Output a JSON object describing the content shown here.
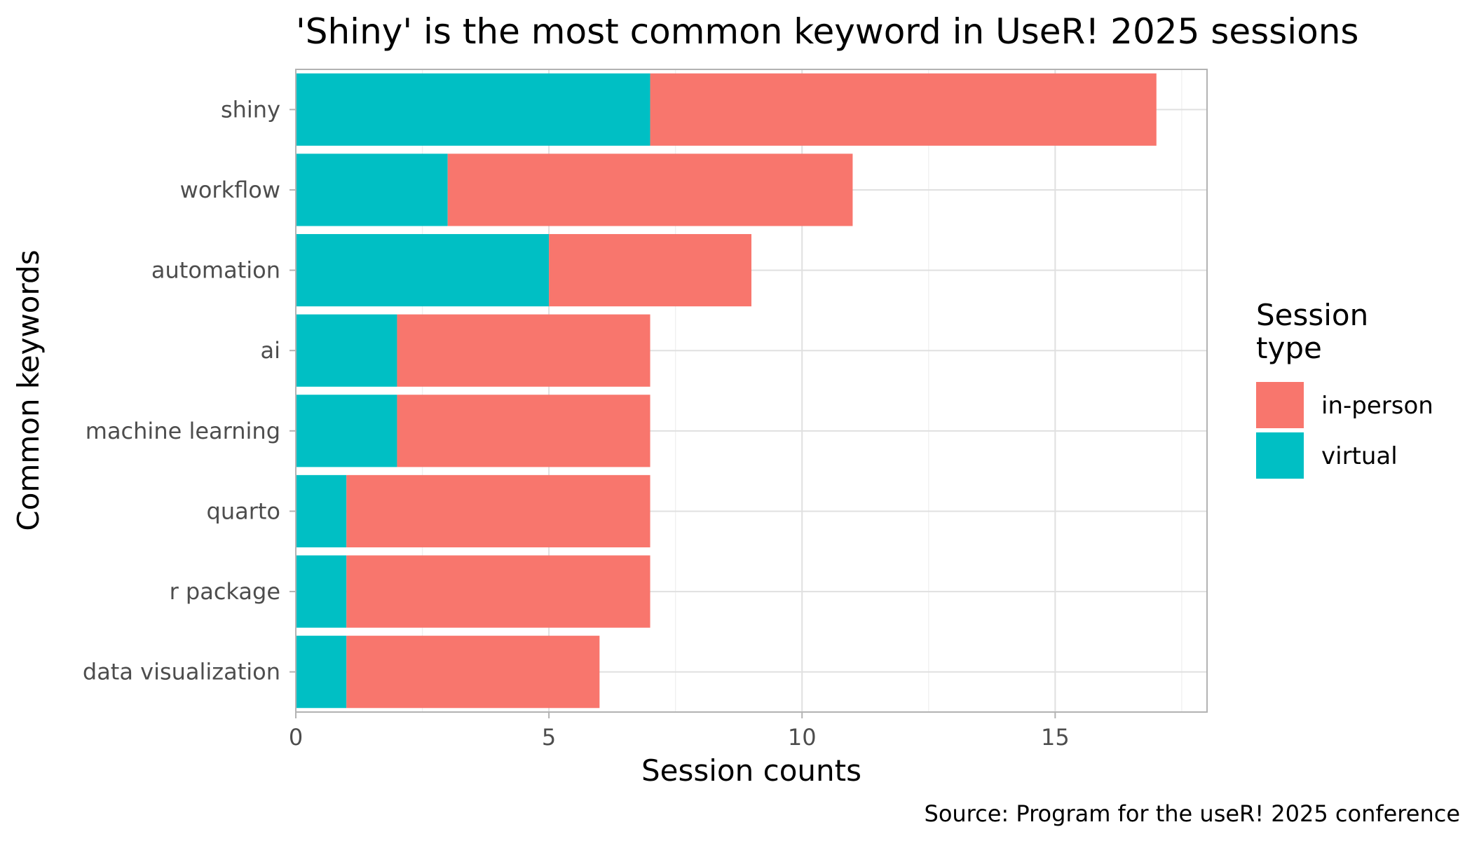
{
  "chart_data": {
    "type": "bar",
    "orientation": "horizontal",
    "stacked": true,
    "title": "'Shiny' is the most common keyword in UseR! 2025 sessions",
    "xlabel": "Session counts",
    "ylabel": "Common keywords",
    "caption": "Source: Program for the useR! 2025 conference",
    "categories": [
      "shiny",
      "workflow",
      "automation",
      "ai",
      "machine learning",
      "quarto",
      "r package",
      "data visualization"
    ],
    "series": [
      {
        "name": "virtual",
        "color": "#00BFC4",
        "values": [
          7,
          3,
          5,
          2,
          2,
          1,
          1,
          1
        ]
      },
      {
        "name": "in-person",
        "color": "#F8766D",
        "values": [
          10,
          8,
          4,
          5,
          5,
          6,
          6,
          5
        ]
      }
    ],
    "xlim": [
      0,
      18
    ],
    "xticks": [
      0,
      5,
      10,
      15
    ],
    "xtick_labels": [
      "0",
      "5",
      "10",
      "15"
    ],
    "grid": true,
    "legend": {
      "title_lines": [
        "Session",
        "type"
      ],
      "position": "right",
      "entries": [
        {
          "label": "in-person",
          "color": "#F8766D"
        },
        {
          "label": "virtual",
          "color": "#00BFC4"
        }
      ]
    }
  }
}
